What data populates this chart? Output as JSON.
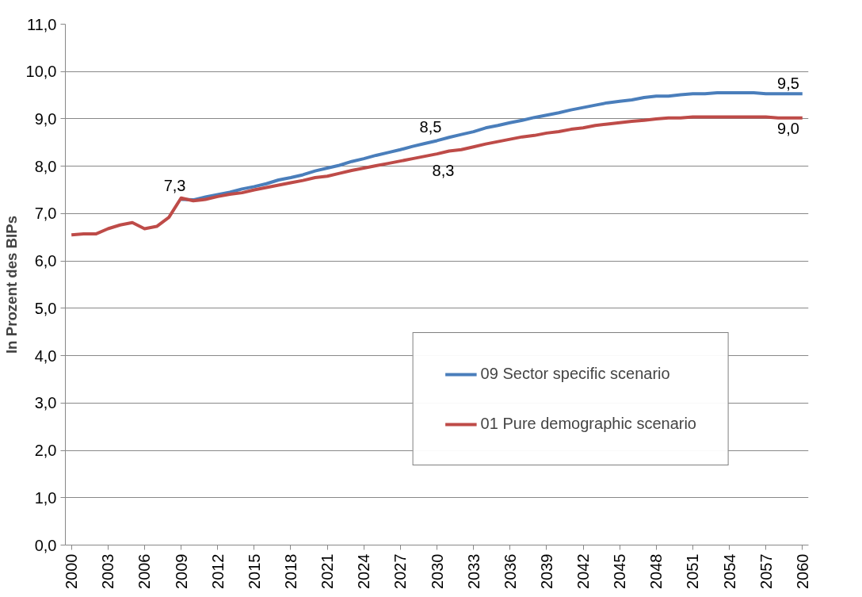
{
  "chart_data": {
    "type": "line",
    "ylabel": "In Prozent des BIPs",
    "x": [
      2000,
      2001,
      2002,
      2003,
      2004,
      2005,
      2006,
      2007,
      2008,
      2009,
      2010,
      2011,
      2012,
      2013,
      2014,
      2015,
      2016,
      2017,
      2018,
      2019,
      2020,
      2021,
      2022,
      2023,
      2024,
      2025,
      2026,
      2027,
      2028,
      2029,
      2030,
      2031,
      2032,
      2033,
      2034,
      2035,
      2036,
      2037,
      2038,
      2039,
      2040,
      2041,
      2042,
      2043,
      2044,
      2045,
      2046,
      2047,
      2048,
      2049,
      2050,
      2051,
      2052,
      2053,
      2054,
      2055,
      2056,
      2057,
      2058,
      2059,
      2060
    ],
    "series": [
      {
        "name": "09 Sector specific scenario",
        "color": "#4a7ebb",
        "values": [
          null,
          null,
          null,
          null,
          null,
          null,
          null,
          null,
          null,
          7.3,
          7.29,
          7.35,
          7.4,
          7.45,
          7.52,
          7.57,
          7.63,
          7.71,
          7.76,
          7.82,
          7.9,
          7.96,
          8.02,
          8.1,
          8.16,
          8.23,
          8.29,
          8.35,
          8.42,
          8.48,
          8.54,
          8.61,
          8.67,
          8.73,
          8.81,
          8.86,
          8.92,
          8.97,
          9.03,
          9.08,
          9.13,
          9.19,
          9.24,
          9.29,
          9.34,
          9.37,
          9.4,
          9.45,
          9.48,
          9.48,
          9.51,
          9.53,
          9.53,
          9.55,
          9.55,
          9.55,
          9.55,
          9.53,
          9.53,
          9.53,
          9.53
        ],
        "value_labels": [
          null,
          null,
          null,
          null,
          null,
          null,
          null,
          null,
          null,
          "7,3",
          null,
          null,
          null,
          null,
          null,
          null,
          null,
          null,
          null,
          null,
          null,
          null,
          null,
          null,
          null,
          null,
          null,
          null,
          null,
          null,
          "8,5",
          null,
          null,
          null,
          null,
          null,
          null,
          null,
          null,
          null,
          null,
          null,
          null,
          null,
          null,
          null,
          null,
          null,
          null,
          null,
          null,
          null,
          null,
          null,
          null,
          null,
          null,
          null,
          null,
          null,
          "9,5"
        ]
      },
      {
        "name": "01 Pure demographic scenario",
        "color": "#be4b48",
        "values": [
          6.55,
          6.57,
          6.57,
          6.68,
          6.76,
          6.81,
          6.68,
          6.73,
          6.92,
          7.33,
          7.27,
          7.3,
          7.36,
          7.41,
          7.44,
          7.5,
          7.55,
          7.6,
          7.65,
          7.7,
          7.76,
          7.79,
          7.85,
          7.91,
          7.96,
          8.01,
          8.06,
          8.11,
          8.16,
          8.21,
          8.26,
          8.32,
          8.35,
          8.41,
          8.47,
          8.52,
          8.57,
          8.62,
          8.65,
          8.7,
          8.73,
          8.78,
          8.81,
          8.86,
          8.89,
          8.92,
          8.95,
          8.97,
          9.0,
          9.02,
          9.02,
          9.04,
          9.04,
          9.04,
          9.04,
          9.04,
          9.04,
          9.04,
          9.02,
          9.02,
          9.02
        ],
        "value_labels": [
          null,
          null,
          null,
          null,
          null,
          null,
          null,
          null,
          null,
          null,
          null,
          null,
          null,
          null,
          null,
          null,
          null,
          null,
          null,
          null,
          null,
          null,
          null,
          null,
          null,
          null,
          null,
          null,
          null,
          null,
          "8,3",
          null,
          null,
          null,
          null,
          null,
          null,
          null,
          null,
          null,
          null,
          null,
          null,
          null,
          null,
          null,
          null,
          null,
          null,
          null,
          null,
          null,
          null,
          null,
          null,
          null,
          null,
          null,
          null,
          null,
          "9,0"
        ]
      }
    ],
    "xlim": [
      1999.5,
      2060.5
    ],
    "xticks": [
      2000,
      2003,
      2006,
      2009,
      2012,
      2015,
      2018,
      2021,
      2024,
      2027,
      2030,
      2033,
      2036,
      2039,
      2042,
      2045,
      2048,
      2051,
      2054,
      2057,
      2060
    ],
    "ylim": [
      0,
      11
    ],
    "yticks": [
      {
        "value": 0,
        "label": "0,0"
      },
      {
        "value": 1,
        "label": "1,0"
      },
      {
        "value": 2,
        "label": "2,0"
      },
      {
        "value": 3,
        "label": "3,0"
      },
      {
        "value": 4,
        "label": "4,0"
      },
      {
        "value": 5,
        "label": "5,0"
      },
      {
        "value": 6,
        "label": "6,0"
      },
      {
        "value": 7,
        "label": "7,0"
      },
      {
        "value": 8,
        "label": "8,0"
      },
      {
        "value": 9,
        "label": "9,0"
      },
      {
        "value": 10,
        "label": "10,0"
      },
      {
        "value": 11,
        "label": "11,0"
      }
    ],
    "grid": "y",
    "legend": "bottom right",
    "marker": "none",
    "line_style": "solid"
  }
}
